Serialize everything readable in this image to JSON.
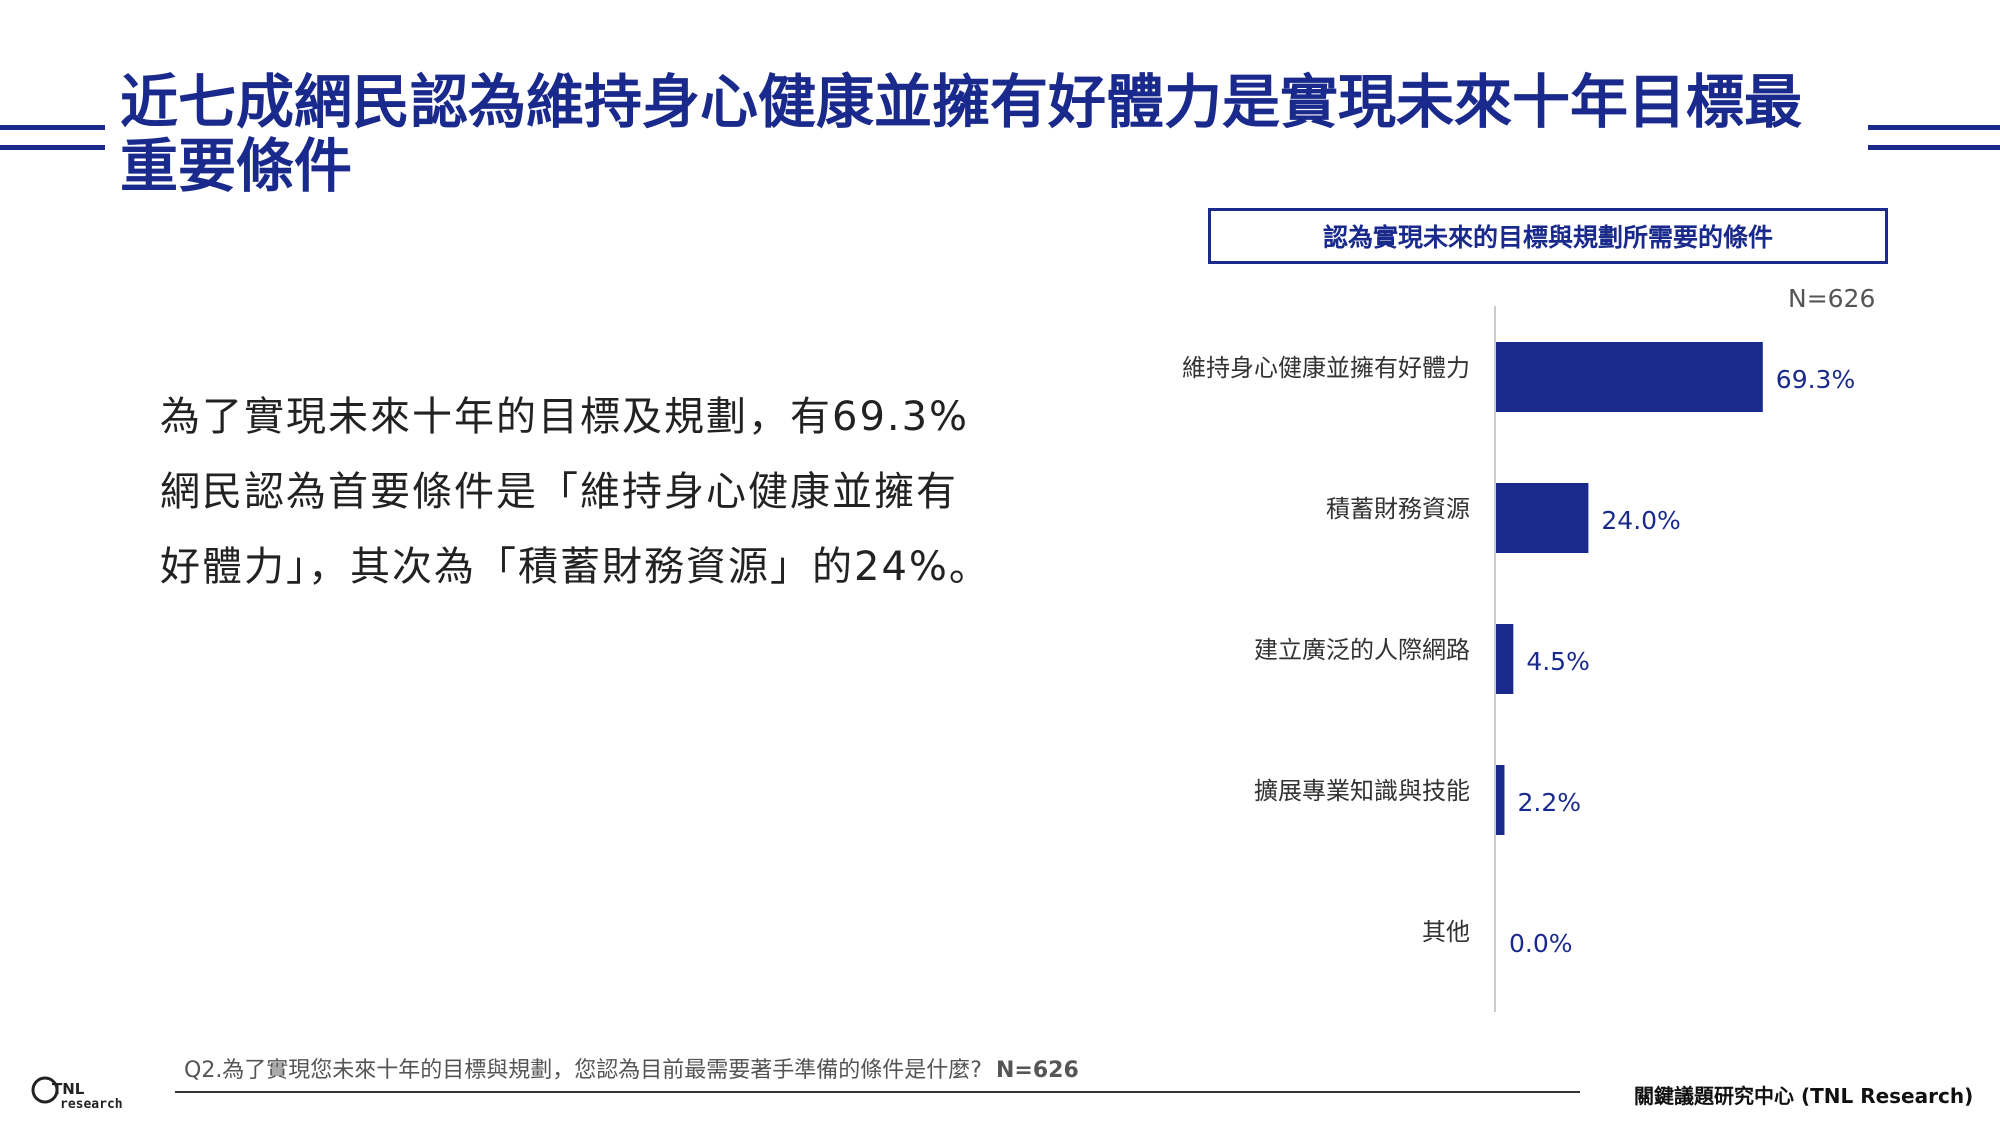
{
  "title": "近七成網民認為維持身心健康並擁有好體力是實現未來十年目標最重要條件",
  "body": {
    "lines": [
      "為了實現未來十年的目標及規劃，有69.3%",
      "網民認為首要條件是「維持身心健康並擁有",
      "好體力」，其次為「積蓄財務資源」的24%。"
    ]
  },
  "chart_box_title": "認為實現未來的目標與規劃所需要的條件",
  "sample": "N=626",
  "chart_data": {
    "type": "bar",
    "orientation": "horizontal",
    "categories": [
      "維持身心健康並擁有好體力",
      "積蓄財務資源",
      "建立廣泛的人際網路",
      "擴展專業知識與技能",
      "其他"
    ],
    "values": [
      69.3,
      24.0,
      4.5,
      2.2,
      0.0
    ],
    "value_labels": [
      "69.3%",
      "24.0%",
      "4.5%",
      "2.2%",
      "0.0%"
    ],
    "unit": "%",
    "xlim": [
      0,
      100
    ],
    "bar_color": "#1a2a8c",
    "grid": false,
    "legend": "none"
  },
  "footer": {
    "question": "Q2.為了實現您未來十年的目標與規劃，您認為目前最需要著手準備的條件是什麼?",
    "n": "N=626",
    "org": "關鍵議題研究中心 (TNL Research)"
  },
  "logo": {
    "line1": "TNL",
    "line2": "research"
  },
  "colors": {
    "accent": "#1a2a8c"
  }
}
